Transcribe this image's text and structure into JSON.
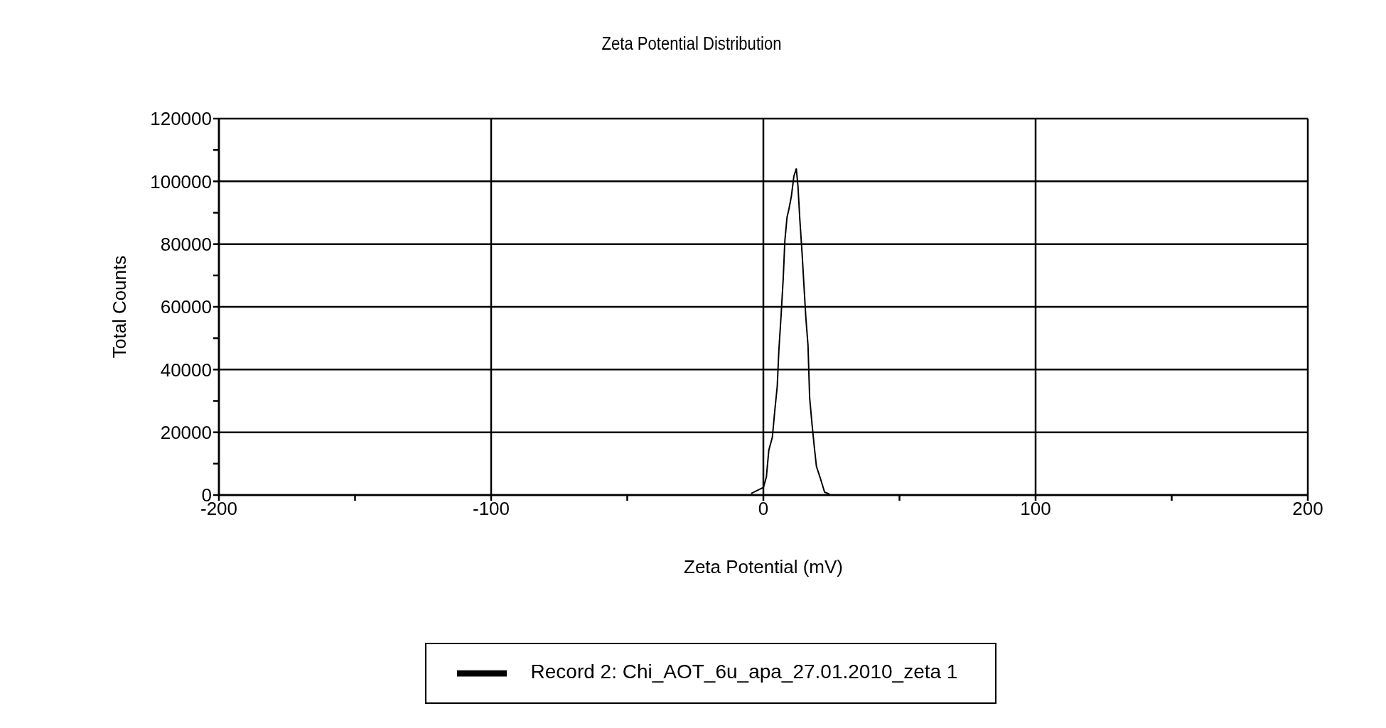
{
  "chart_data": {
    "type": "line",
    "title": "Zeta Potential Distribution",
    "xlabel": "Zeta Potential (mV)",
    "ylabel": "Total Counts",
    "x": [
      -4.5,
      -1.9,
      0,
      1.1,
      2.0,
      3.3,
      4.2,
      5.1,
      5.7,
      6.6,
      7.3,
      7.9,
      8.7,
      9.4,
      10.3,
      11.2,
      12.1,
      12.7,
      13.4,
      14.2,
      14.9,
      15.6,
      16.4,
      17.0,
      17.9,
      18.8,
      19.5,
      20.8,
      22.5,
      24.3
    ],
    "series": [
      {
        "name": "Record 2: Chi_AOT_6u_apa_27.01.2010_zeta 1",
        "color": "#000000",
        "values": [
          500,
          1600,
          2400,
          5700,
          14300,
          18400,
          26900,
          34700,
          46200,
          58500,
          69200,
          81100,
          88600,
          91200,
          95300,
          101600,
          104000,
          98600,
          87800,
          77400,
          67000,
          56600,
          47700,
          31000,
          22400,
          14600,
          9100,
          5700,
          900,
          300
        ]
      }
    ],
    "xlim": [
      -200,
      200
    ],
    "xticks": [
      -200,
      {
        "value": -150,
        "label": null
      },
      -100,
      {
        "value": -50,
        "label": null
      },
      0,
      {
        "value": 50,
        "label": null
      },
      100,
      {
        "value": 150,
        "label": null
      },
      200
    ],
    "ylim": [
      0,
      120000
    ],
    "yticks": [
      0,
      {
        "value": 10000,
        "label": null
      },
      20000,
      {
        "value": 30000,
        "label": null
      },
      40000,
      {
        "value": 50000,
        "label": null
      },
      60000,
      {
        "value": 70000,
        "label": null
      },
      80000,
      {
        "value": 90000,
        "label": null
      },
      100000,
      {
        "value": 110000,
        "label": null
      },
      120000
    ],
    "grid": true,
    "legend": "bottom",
    "marker": "none",
    "line_style": "solid"
  }
}
